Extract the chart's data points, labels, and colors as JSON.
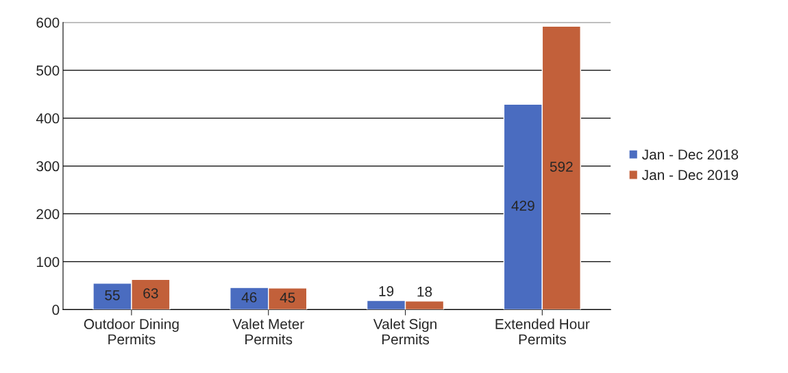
{
  "chart_data": {
    "type": "bar",
    "categories": [
      "Outdoor Dining\nPermits",
      "Valet Meter\nPermits",
      "Valet Sign\nPermits",
      "Extended Hour\nPermits"
    ],
    "series": [
      {
        "name": "Jan - Dec 2018",
        "color": "#4a6cc0",
        "values": [
          55,
          46,
          19,
          429
        ]
      },
      {
        "name": "Jan - Dec 2019",
        "color": "#c2603a",
        "values": [
          63,
          45,
          18,
          592
        ]
      }
    ],
    "ylim": [
      0,
      600
    ],
    "yticks": [
      0,
      100,
      200,
      300,
      400,
      500,
      600
    ],
    "grid": "y",
    "legend": "right",
    "data_labels": true
  }
}
